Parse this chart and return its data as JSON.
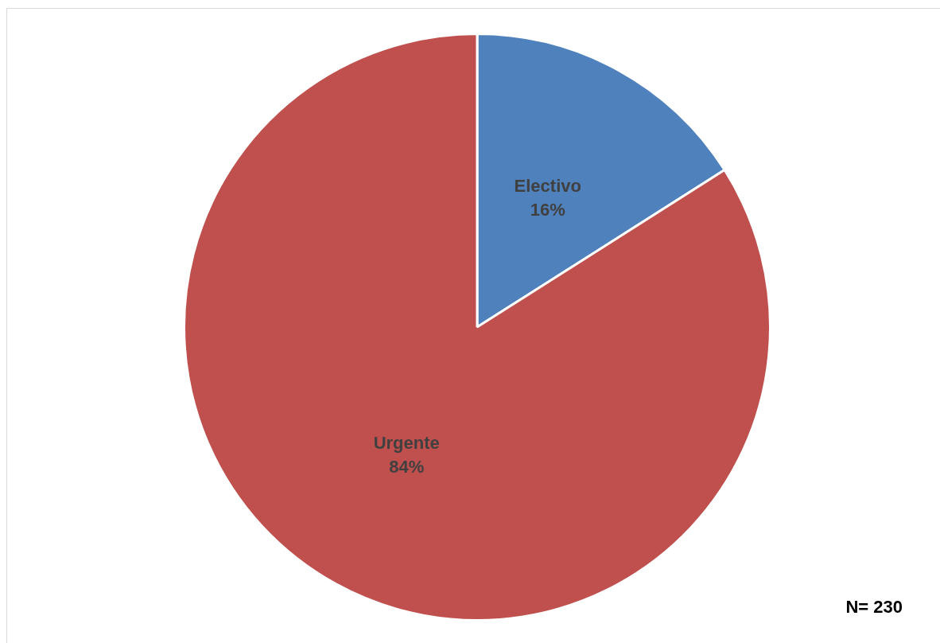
{
  "chart_data": {
    "type": "pie",
    "categories": [
      "Electivo",
      "Urgente"
    ],
    "values": [
      16,
      84
    ],
    "value_labels": [
      "16%",
      "84%"
    ],
    "colors": [
      "#4f81bd",
      "#c0504d"
    ],
    "annotations": [
      "N= 230"
    ]
  }
}
